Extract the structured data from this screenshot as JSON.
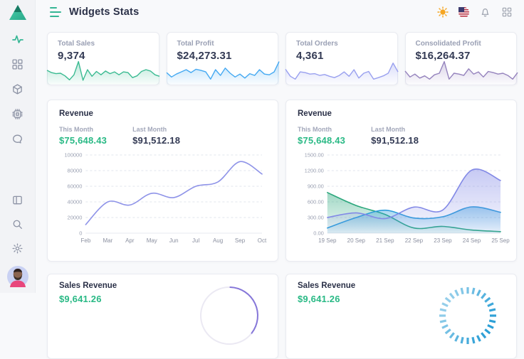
{
  "header": {
    "title": "Widgets Stats"
  },
  "sidebar": {
    "items": [
      {
        "icon": "activity-icon",
        "active": true
      },
      {
        "icon": "widgets-grid-icon",
        "active": false
      },
      {
        "icon": "package-cube-icon",
        "active": false
      },
      {
        "icon": "cpu-icon",
        "active": false
      },
      {
        "icon": "chat-bubble-icon",
        "active": false
      },
      {
        "icon": "layout-panel-icon",
        "active": false
      },
      {
        "icon": "search-icon",
        "active": false
      },
      {
        "icon": "settings-gear-icon",
        "active": false
      }
    ]
  },
  "stat_cards": [
    {
      "label": "Total Sales",
      "value": "9,374",
      "color": "#3bbb92",
      "spark": [
        55,
        45,
        40,
        42,
        30,
        12,
        35,
        95,
        10,
        58,
        28,
        50,
        35,
        52,
        40,
        48,
        35,
        48,
        45,
        22,
        30,
        50,
        58,
        52,
        35,
        28
      ]
    },
    {
      "label": "Total Profit",
      "value": "$24,273.31",
      "color": "#45a9f2",
      "spark": [
        45,
        25,
        38,
        48,
        58,
        45,
        60,
        55,
        48,
        15,
        58,
        32,
        65,
        42,
        25,
        38,
        20,
        40,
        32,
        58,
        38,
        35,
        48,
        95
      ]
    },
    {
      "label": "Total Orders",
      "value": "4,361",
      "color": "#99a0ef",
      "spark": [
        60,
        28,
        15,
        48,
        45,
        38,
        40,
        32,
        36,
        28,
        22,
        32,
        48,
        28,
        58,
        20,
        42,
        50,
        15,
        22,
        30,
        42,
        88,
        48
      ]
    },
    {
      "label": "Consolidated Profit",
      "value": "$16,264.37",
      "color": "#9583bd",
      "spark": [
        52,
        25,
        38,
        20,
        30,
        15,
        35,
        42,
        95,
        15,
        42,
        38,
        32,
        62,
        38,
        48,
        25,
        50,
        45,
        38,
        42,
        32,
        15,
        45
      ]
    }
  ],
  "revenue_cards": [
    {
      "title": "Revenue",
      "this_month_label": "This Month",
      "this_month_value": "$75,648.43",
      "last_month_label": "Last Month",
      "last_month_value": "$91,512.18",
      "chart_data": {
        "type": "line",
        "x": [
          "Feb",
          "Mar",
          "Apr",
          "May",
          "Jun",
          "Jul",
          "Aug",
          "Sep",
          "Oct"
        ],
        "series": [
          {
            "name": "Revenue",
            "color": "#8e93e8",
            "fill": false,
            "values": [
              11000,
              40000,
              36000,
              51000,
              45500,
              60000,
              65500,
              91500,
              75600
            ]
          }
        ],
        "ylim": [
          0,
          100000
        ],
        "ytick_step": 20000,
        "y_format": "int",
        "grid": true,
        "legend": false
      }
    },
    {
      "title": "Revenue",
      "this_month_label": "This Month",
      "this_month_value": "$75,648.43",
      "last_month_label": "Last Month",
      "last_month_value": "$91,512.18",
      "chart_data": {
        "type": "area",
        "x": [
          "19 Sep",
          "20 Sep",
          "21 Sep",
          "22 Sep",
          "23 Sep",
          "24 Sep",
          "25 Sep"
        ],
        "series": [
          {
            "name": "series-green",
            "color": "#2ba77c",
            "fill": true,
            "values": [
              780,
              530,
              360,
              100,
              130,
              60,
              30
            ]
          },
          {
            "name": "series-blue",
            "color": "#2d9ddb",
            "fill": true,
            "values": [
              100,
              300,
              440,
              290,
              315,
              505,
              400
            ]
          },
          {
            "name": "series-purple",
            "color": "#8289e6",
            "fill": true,
            "values": [
              300,
              390,
              280,
              500,
              445,
              1210,
              1010
            ]
          }
        ],
        "ylim": [
          0,
          1500
        ],
        "ytick_step": 300,
        "y_format": "2dp",
        "grid": true,
        "legend": false
      }
    }
  ],
  "bottom_cards": [
    {
      "title": "Sales Revenue",
      "value": "$9,641.26",
      "gauge": "ring-arc",
      "gauge_color": "#8677d9"
    },
    {
      "title": "Sales Revenue",
      "value": "$9,641.26",
      "gauge": "radial-ticks",
      "gauge_color": "#2b9fd6"
    }
  ]
}
